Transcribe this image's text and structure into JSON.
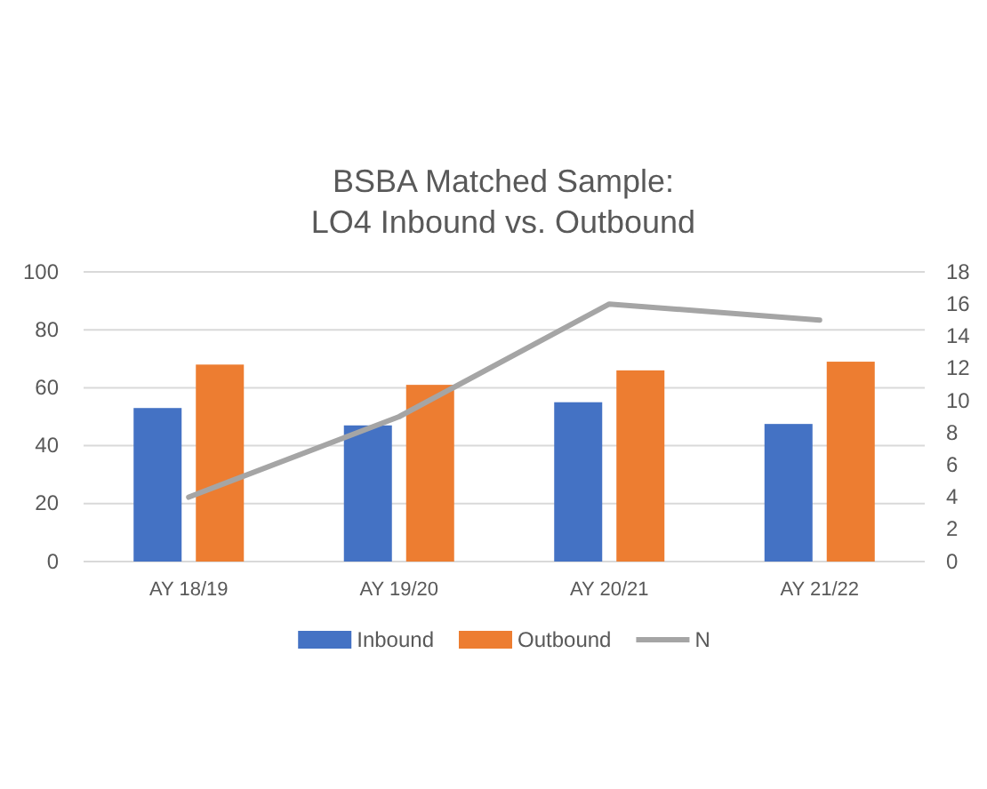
{
  "chart_data": {
    "type": "bar",
    "title": "BSBA Matched Sample:\nLO4 Inbound vs. Outbound",
    "categories": [
      "AY 18/19",
      "AY 19/20",
      "AY 20/21",
      "AY 21/22"
    ],
    "series": [
      {
        "name": "Inbound",
        "color": "#4472c4",
        "values": [
          53,
          47,
          55,
          47.5
        ]
      },
      {
        "name": "Outbound",
        "color": "#ed7d31",
        "values": [
          68,
          61,
          66,
          69
        ]
      },
      {
        "name": "N",
        "type": "line",
        "axis": "y2",
        "color": "#a5a5a5",
        "values": [
          4,
          9,
          16,
          15
        ]
      }
    ],
    "ylim": [
      0,
      100
    ],
    "yticks": [
      0,
      20,
      40,
      60,
      80,
      100
    ],
    "y2lim": [
      0,
      18
    ],
    "y2ticks": [
      0,
      2,
      4,
      6,
      8,
      10,
      12,
      14,
      16,
      18
    ],
    "grid": "y",
    "legend": "bottom",
    "marker": "none"
  }
}
